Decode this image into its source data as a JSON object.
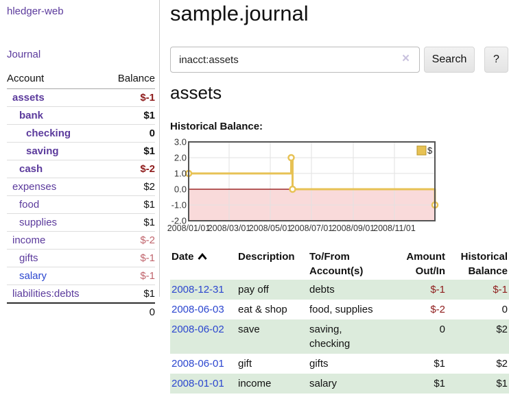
{
  "colors": {
    "link_purple": "#5b3a9c",
    "link_blue": "#2b46cf",
    "neg_strong": "#8e1b1b",
    "neg_soft": "#c0646c",
    "row_green": "#dcebdc",
    "chart_gold": "#e7c254",
    "chart_pink": "#f9dada",
    "chart_zero": "#8b0000"
  },
  "sidebar": {
    "brand": "hledger-web",
    "journal_link": "Journal",
    "accounts": {
      "header_account": "Account",
      "header_balance": "Balance",
      "rows": [
        {
          "name": "assets",
          "balance": "$-1",
          "depth": 0,
          "in_account": true,
          "negative": "strong"
        },
        {
          "name": "bank",
          "balance": "$1",
          "depth": 1,
          "in_account": true,
          "negative": "none"
        },
        {
          "name": "checking",
          "balance": "0",
          "depth": 2,
          "in_account": true,
          "negative": "none"
        },
        {
          "name": "saving",
          "balance": "$1",
          "depth": 2,
          "in_account": true,
          "negative": "none"
        },
        {
          "name": "cash",
          "balance": "$-2",
          "depth": 1,
          "in_account": true,
          "negative": "strong"
        },
        {
          "name": "expenses",
          "balance": "$2",
          "depth": 0,
          "in_account": false,
          "negative": "none"
        },
        {
          "name": "food",
          "balance": "$1",
          "depth": 1,
          "in_account": false,
          "negative": "none"
        },
        {
          "name": "supplies",
          "balance": "$1",
          "depth": 1,
          "in_account": false,
          "negative": "none"
        },
        {
          "name": "income",
          "balance": "$-2",
          "depth": 0,
          "in_account": false,
          "negative": "soft"
        },
        {
          "name": "gifts",
          "balance": "$-1",
          "depth": 1,
          "in_account": false,
          "negative": "soft"
        },
        {
          "name": "salary",
          "balance": "$-1",
          "depth": 1,
          "in_account": false,
          "negative": "soft",
          "link_color": "blue"
        },
        {
          "name": "liabilities:debts",
          "balance": "$1",
          "depth": 0,
          "in_account": false,
          "negative": "none"
        }
      ],
      "total": "0"
    }
  },
  "main": {
    "title": "sample.journal",
    "search": {
      "value": "inacct:assets",
      "clear_icon": "×",
      "search_button": "Search",
      "help_button": "?"
    },
    "account_heading": "assets",
    "chart_heading": "Historical Balance:"
  },
  "chart_data": {
    "type": "line",
    "step": true,
    "title": "Historical Balance",
    "series": [
      {
        "name": "$",
        "points": [
          [
            "2008/01/01",
            1
          ],
          [
            "2008/06/01",
            2
          ],
          [
            "2008/06/03",
            0
          ],
          [
            "2008/12/31",
            -1
          ]
        ]
      }
    ],
    "x_range": [
      "2008/01/01",
      "2008/12/31"
    ],
    "ylim": [
      -2,
      3
    ],
    "y_tick_values": [
      3,
      2,
      1,
      0,
      -1,
      -2
    ],
    "y_tick_labels": [
      "3.0",
      "2.0",
      "1.0",
      "0.0",
      "-1.0",
      "-2.0"
    ],
    "x_tick_labels": [
      "2008/01/01",
      "2008/03/01",
      "2008/05/01",
      "2008/07/01",
      "2008/09/01",
      "2008/11/01"
    ],
    "legend": {
      "label": "$",
      "position": "top-right"
    },
    "grid": true,
    "negative_area_shaded": true,
    "zero_line": true
  },
  "register": {
    "headers": {
      "date": "Date",
      "description": "Description",
      "accounts": "To/From Account(s)",
      "amount": "Amount Out/In",
      "balance": "Historical Balance"
    },
    "sort": {
      "column": "date",
      "direction": "ascending"
    },
    "rows": [
      {
        "date": "2008-12-31",
        "description": "pay off",
        "accounts": "debts",
        "amount": "$-1",
        "amount_negative": true,
        "balance": "$-1",
        "balance_negative": true
      },
      {
        "date": "2008-06-03",
        "description": "eat & shop",
        "accounts": "food, supplies",
        "amount": "$-2",
        "amount_negative": true,
        "balance": "0",
        "balance_negative": false
      },
      {
        "date": "2008-06-02",
        "description": "save",
        "accounts": "saving, checking",
        "amount": "0",
        "amount_negative": false,
        "balance": "$2",
        "balance_negative": false
      },
      {
        "date": "2008-06-01",
        "description": "gift",
        "accounts": "gifts",
        "amount": "$1",
        "amount_negative": false,
        "balance": "$2",
        "balance_negative": false
      },
      {
        "date": "2008-01-01",
        "description": "income",
        "accounts": "salary",
        "amount": "$1",
        "amount_negative": false,
        "balance": "$1",
        "balance_negative": false
      }
    ]
  }
}
